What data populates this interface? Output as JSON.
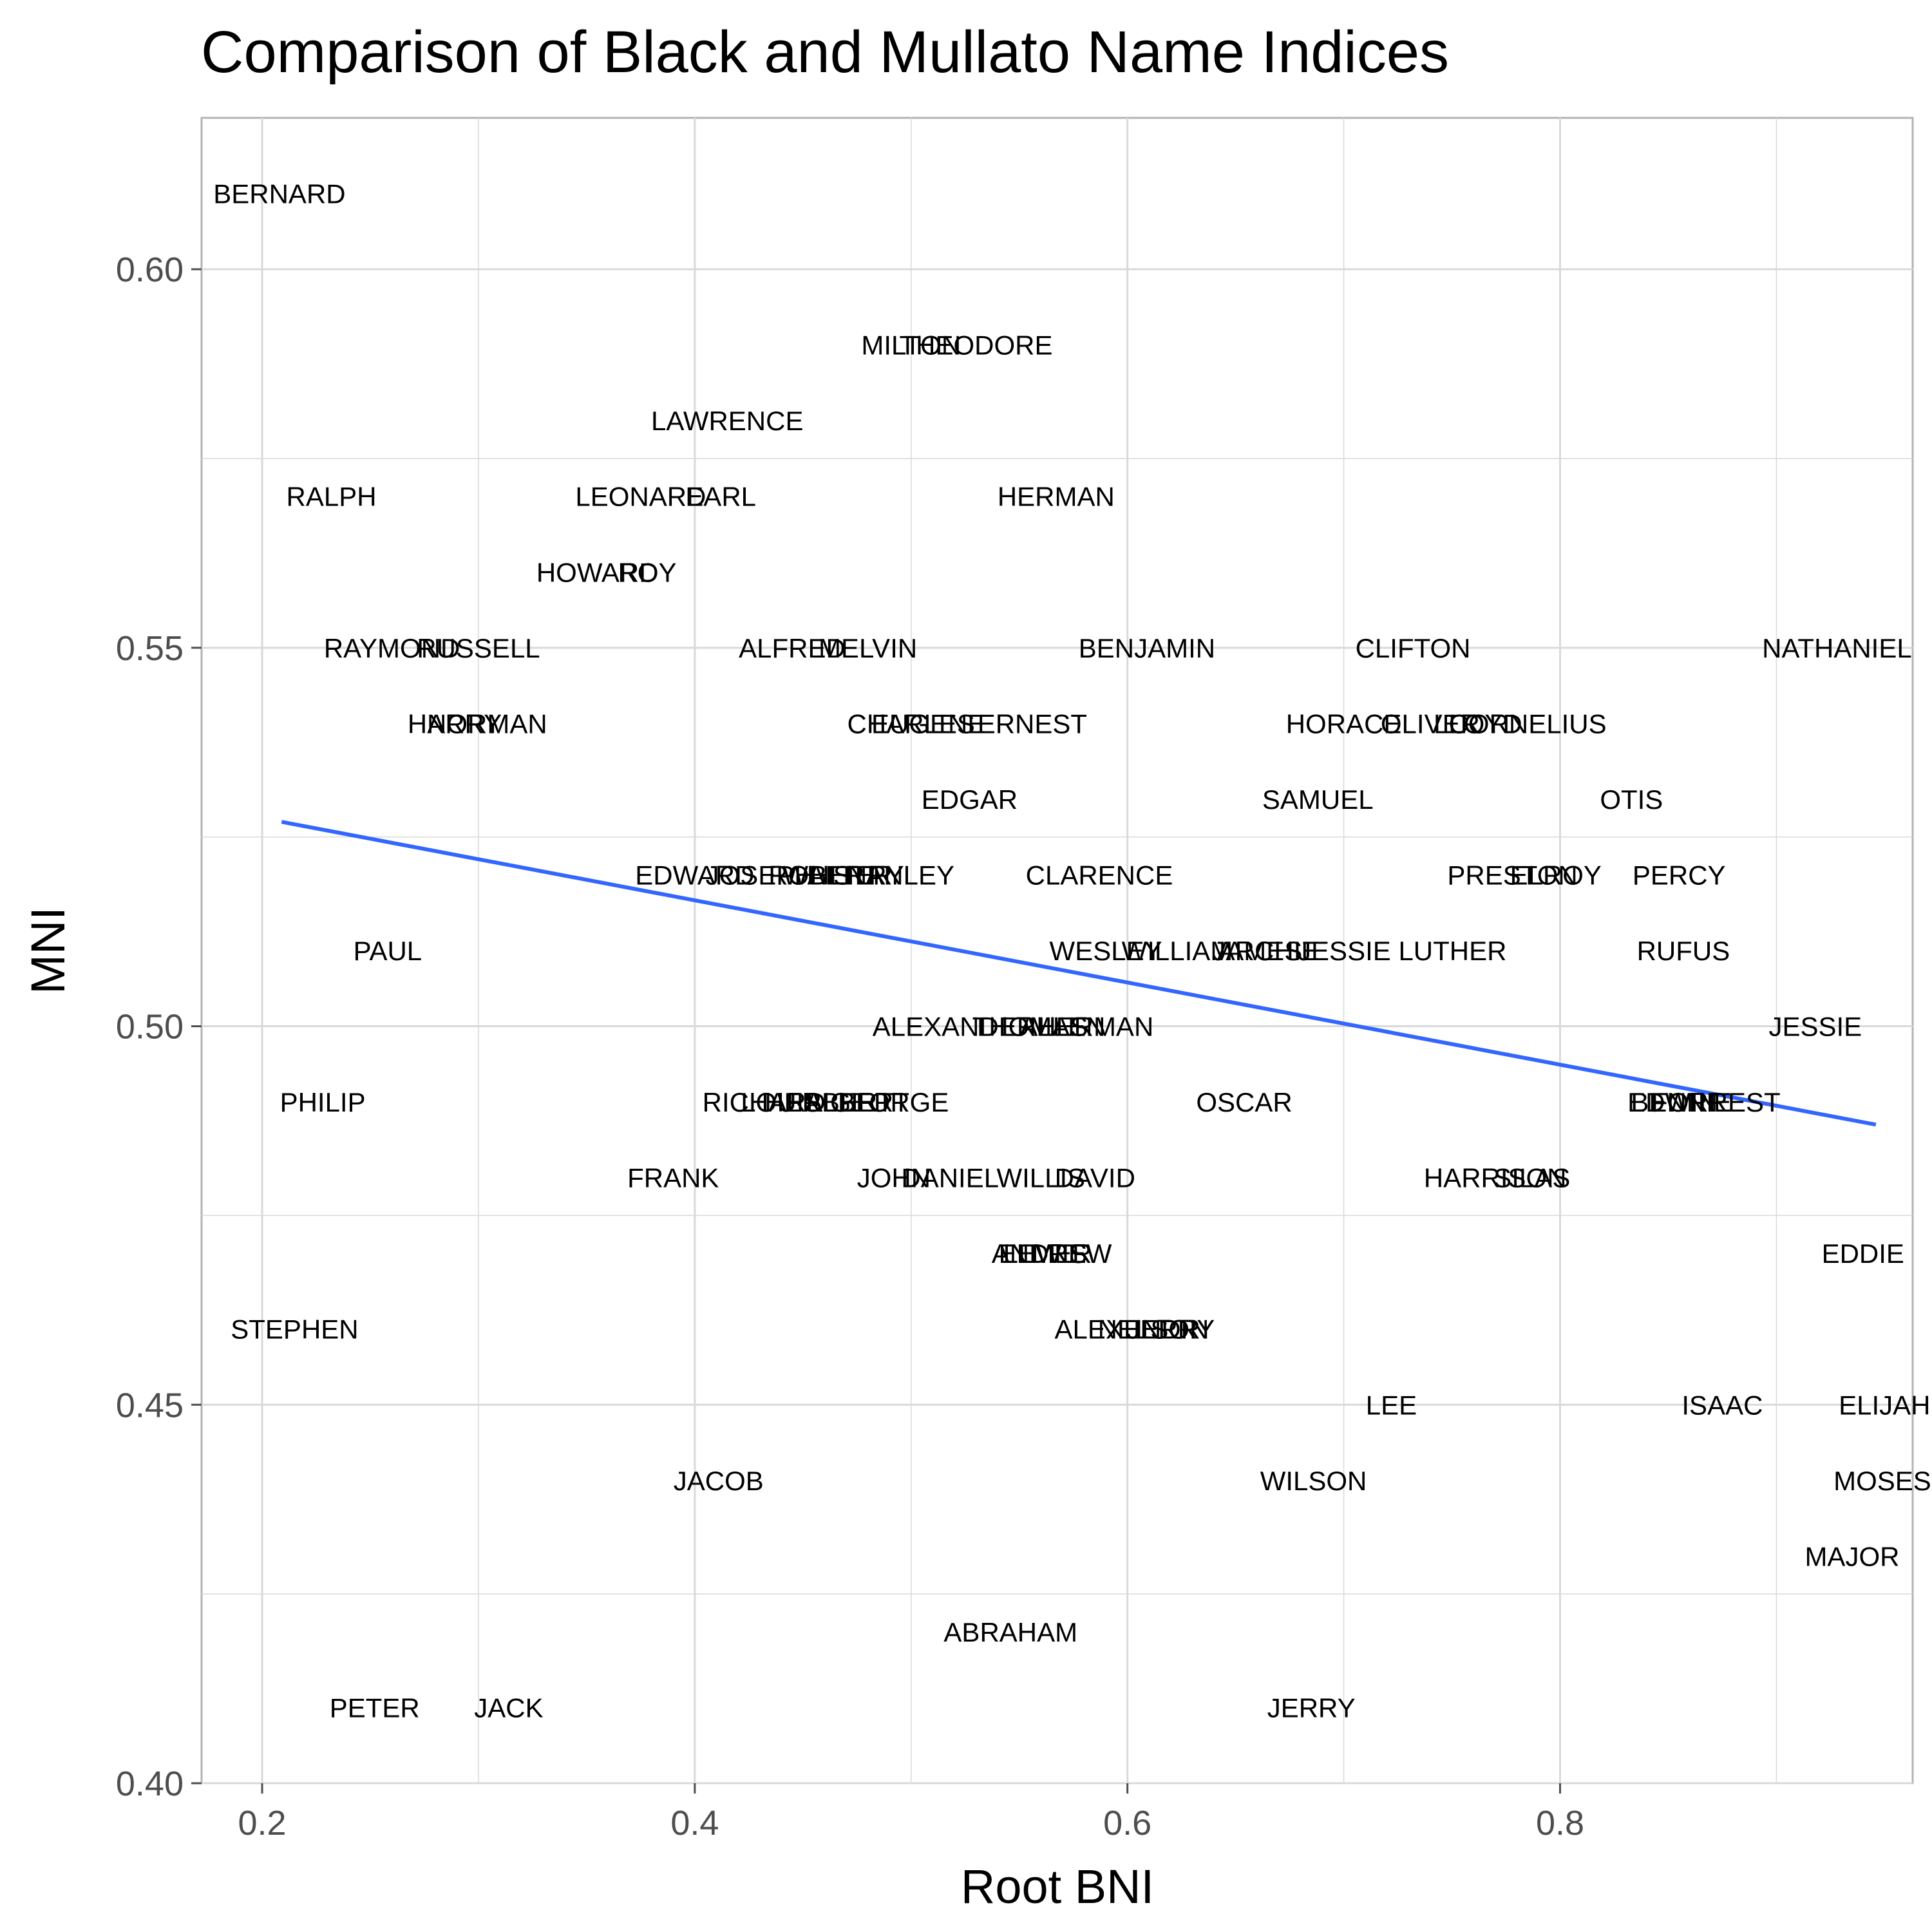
{
  "chart_data": {
    "type": "scatter",
    "title": "Comparison of Black and Mullato Name Indices",
    "xlabel": "Root BNI",
    "ylabel": "MNI",
    "xlim": [
      0.172,
      0.963
    ],
    "ylim": [
      0.4,
      0.62
    ],
    "x_ticks": [
      0.2,
      0.4,
      0.6,
      0.8
    ],
    "x_tick_labels": [
      "0.2",
      "0.4",
      "0.6",
      "0.8"
    ],
    "y_ticks": [
      0.4,
      0.45,
      0.5,
      0.55,
      0.6
    ],
    "y_tick_labels": [
      "0.40",
      "0.45",
      "0.50",
      "0.55",
      "0.60"
    ],
    "grid": true,
    "colors": {
      "fit_line": "#3366ff",
      "grid": "#d9d9d9",
      "panel_border": "#b3b3b3"
    },
    "fit_line": {
      "x": [
        0.209,
        0.946
      ],
      "y": [
        0.527,
        0.487
      ]
    },
    "points": [
      {
        "label": "BERNARD",
        "x": 0.208,
        "y": 0.61
      },
      {
        "label": "MILTON",
        "x": 0.5,
        "y": 0.59
      },
      {
        "label": "THEODORE",
        "x": 0.53,
        "y": 0.59
      },
      {
        "label": "LAWRENCE",
        "x": 0.415,
        "y": 0.58
      },
      {
        "label": "RALPH",
        "x": 0.232,
        "y": 0.57
      },
      {
        "label": "LEONARD",
        "x": 0.375,
        "y": 0.57
      },
      {
        "label": "EARL",
        "x": 0.412,
        "y": 0.57
      },
      {
        "label": "HERMAN",
        "x": 0.567,
        "y": 0.57
      },
      {
        "label": "HOWARD",
        "x": 0.355,
        "y": 0.56
      },
      {
        "label": "ROY",
        "x": 0.378,
        "y": 0.56
      },
      {
        "label": "RAYMOND",
        "x": 0.26,
        "y": 0.55
      },
      {
        "label": "RUSSELL",
        "x": 0.3,
        "y": 0.55
      },
      {
        "label": "ALFRED",
        "x": 0.445,
        "y": 0.55
      },
      {
        "label": "MELVIN",
        "x": 0.48,
        "y": 0.55
      },
      {
        "label": "BENJAMIN",
        "x": 0.609,
        "y": 0.55
      },
      {
        "label": "CLIFTON",
        "x": 0.732,
        "y": 0.55
      },
      {
        "label": "NATHANIEL",
        "x": 0.928,
        "y": 0.55
      },
      {
        "label": "HARRY",
        "x": 0.289,
        "y": 0.54
      },
      {
        "label": "NORMAN",
        "x": 0.304,
        "y": 0.54
      },
      {
        "label": "CHARLES",
        "x": 0.5,
        "y": 0.54
      },
      {
        "label": "EUGENE",
        "x": 0.508,
        "y": 0.54
      },
      {
        "label": "ERNEST",
        "x": 0.556,
        "y": 0.54
      },
      {
        "label": "HORACE",
        "x": 0.7,
        "y": 0.54
      },
      {
        "label": "OLIVER",
        "x": 0.74,
        "y": 0.54
      },
      {
        "label": "CORNELIUS",
        "x": 0.785,
        "y": 0.54
      },
      {
        "label": "LLOYD",
        "x": 0.762,
        "y": 0.54
      },
      {
        "label": "EDGAR",
        "x": 0.527,
        "y": 0.53
      },
      {
        "label": "SAMUEL",
        "x": 0.688,
        "y": 0.53
      },
      {
        "label": "OTIS",
        "x": 0.833,
        "y": 0.53
      },
      {
        "label": "EDWARD",
        "x": 0.4,
        "y": 0.52
      },
      {
        "label": "JOSEPH",
        "x": 0.43,
        "y": 0.52
      },
      {
        "label": "ROBERT",
        "x": 0.46,
        "y": 0.52
      },
      {
        "label": "WALTER",
        "x": 0.466,
        "y": 0.52
      },
      {
        "label": "HENRY",
        "x": 0.475,
        "y": 0.52
      },
      {
        "label": "STANLEY",
        "x": 0.492,
        "y": 0.52
      },
      {
        "label": "CLARENCE",
        "x": 0.587,
        "y": 0.52
      },
      {
        "label": "PRESTON",
        "x": 0.778,
        "y": 0.52
      },
      {
        "label": "ELROY",
        "x": 0.798,
        "y": 0.52
      },
      {
        "label": "PERCY",
        "x": 0.855,
        "y": 0.52
      },
      {
        "label": "PAUL",
        "x": 0.258,
        "y": 0.51
      },
      {
        "label": "WESLEY",
        "x": 0.59,
        "y": 0.51
      },
      {
        "label": "WILLIAM",
        "x": 0.623,
        "y": 0.51
      },
      {
        "label": "JAMES",
        "x": 0.66,
        "y": 0.51
      },
      {
        "label": "ARCHIE",
        "x": 0.665,
        "y": 0.51
      },
      {
        "label": "JESSIE LUTHER",
        "x": 0.727,
        "y": 0.51
      },
      {
        "label": "RUFUS",
        "x": 0.857,
        "y": 0.51
      },
      {
        "label": "ALEXANDER",
        "x": 0.52,
        "y": 0.5
      },
      {
        "label": "THOMAS",
        "x": 0.555,
        "y": 0.5
      },
      {
        "label": "ALLEN",
        "x": 0.57,
        "y": 0.5
      },
      {
        "label": "HERMAN",
        "x": 0.585,
        "y": 0.5
      },
      {
        "label": "JESSIE",
        "x": 0.918,
        "y": 0.5
      },
      {
        "label": "PHILIP",
        "x": 0.228,
        "y": 0.49
      },
      {
        "label": "RICHARD",
        "x": 0.432,
        "y": 0.49
      },
      {
        "label": "LOUIS",
        "x": 0.44,
        "y": 0.49
      },
      {
        "label": "HERBERT",
        "x": 0.462,
        "y": 0.49
      },
      {
        "label": "ALBERT",
        "x": 0.475,
        "y": 0.49
      },
      {
        "label": "GEORGE",
        "x": 0.49,
        "y": 0.49
      },
      {
        "label": "OSCAR",
        "x": 0.654,
        "y": 0.49
      },
      {
        "label": "EDWIN",
        "x": 0.852,
        "y": 0.49
      },
      {
        "label": "BENNIE",
        "x": 0.856,
        "y": 0.49
      },
      {
        "label": "FORREST",
        "x": 0.872,
        "y": 0.49
      },
      {
        "label": "FRANK",
        "x": 0.39,
        "y": 0.48
      },
      {
        "label": "JOHN",
        "x": 0.492,
        "y": 0.48
      },
      {
        "label": "DANIEL",
        "x": 0.518,
        "y": 0.48
      },
      {
        "label": "WILLIS",
        "x": 0.56,
        "y": 0.48
      },
      {
        "label": "DAVID",
        "x": 0.585,
        "y": 0.48
      },
      {
        "label": "HARRISON",
        "x": 0.77,
        "y": 0.48
      },
      {
        "label": "SILAS",
        "x": 0.787,
        "y": 0.48
      },
      {
        "label": "ANDREW",
        "x": 0.565,
        "y": 0.47
      },
      {
        "label": "LEWIS",
        "x": 0.562,
        "y": 0.47
      },
      {
        "label": "ELMER",
        "x": 0.562,
        "y": 0.47
      },
      {
        "label": "EDDIE",
        "x": 0.94,
        "y": 0.47
      },
      {
        "label": "STEPHEN",
        "x": 0.215,
        "y": 0.46
      },
      {
        "label": "ALEXENDR",
        "x": 0.6,
        "y": 0.46
      },
      {
        "label": "NELSON",
        "x": 0.612,
        "y": 0.46
      },
      {
        "label": "JERRY",
        "x": 0.62,
        "y": 0.46
      },
      {
        "label": "LEE",
        "x": 0.722,
        "y": 0.45
      },
      {
        "label": "ISAAC",
        "x": 0.875,
        "y": 0.45
      },
      {
        "label": "ELIJAH",
        "x": 0.95,
        "y": 0.45
      },
      {
        "label": "JACOB",
        "x": 0.411,
        "y": 0.44
      },
      {
        "label": "WILSON",
        "x": 0.686,
        "y": 0.44
      },
      {
        "label": "MOSES",
        "x": 0.949,
        "y": 0.44
      },
      {
        "label": "MAJOR",
        "x": 0.935,
        "y": 0.43
      },
      {
        "label": "ABRAHAM",
        "x": 0.546,
        "y": 0.42
      },
      {
        "label": "PETER",
        "x": 0.252,
        "y": 0.41
      },
      {
        "label": "JACK",
        "x": 0.314,
        "y": 0.41
      },
      {
        "label": "JERRY",
        "x": 0.685,
        "y": 0.41
      }
    ]
  }
}
